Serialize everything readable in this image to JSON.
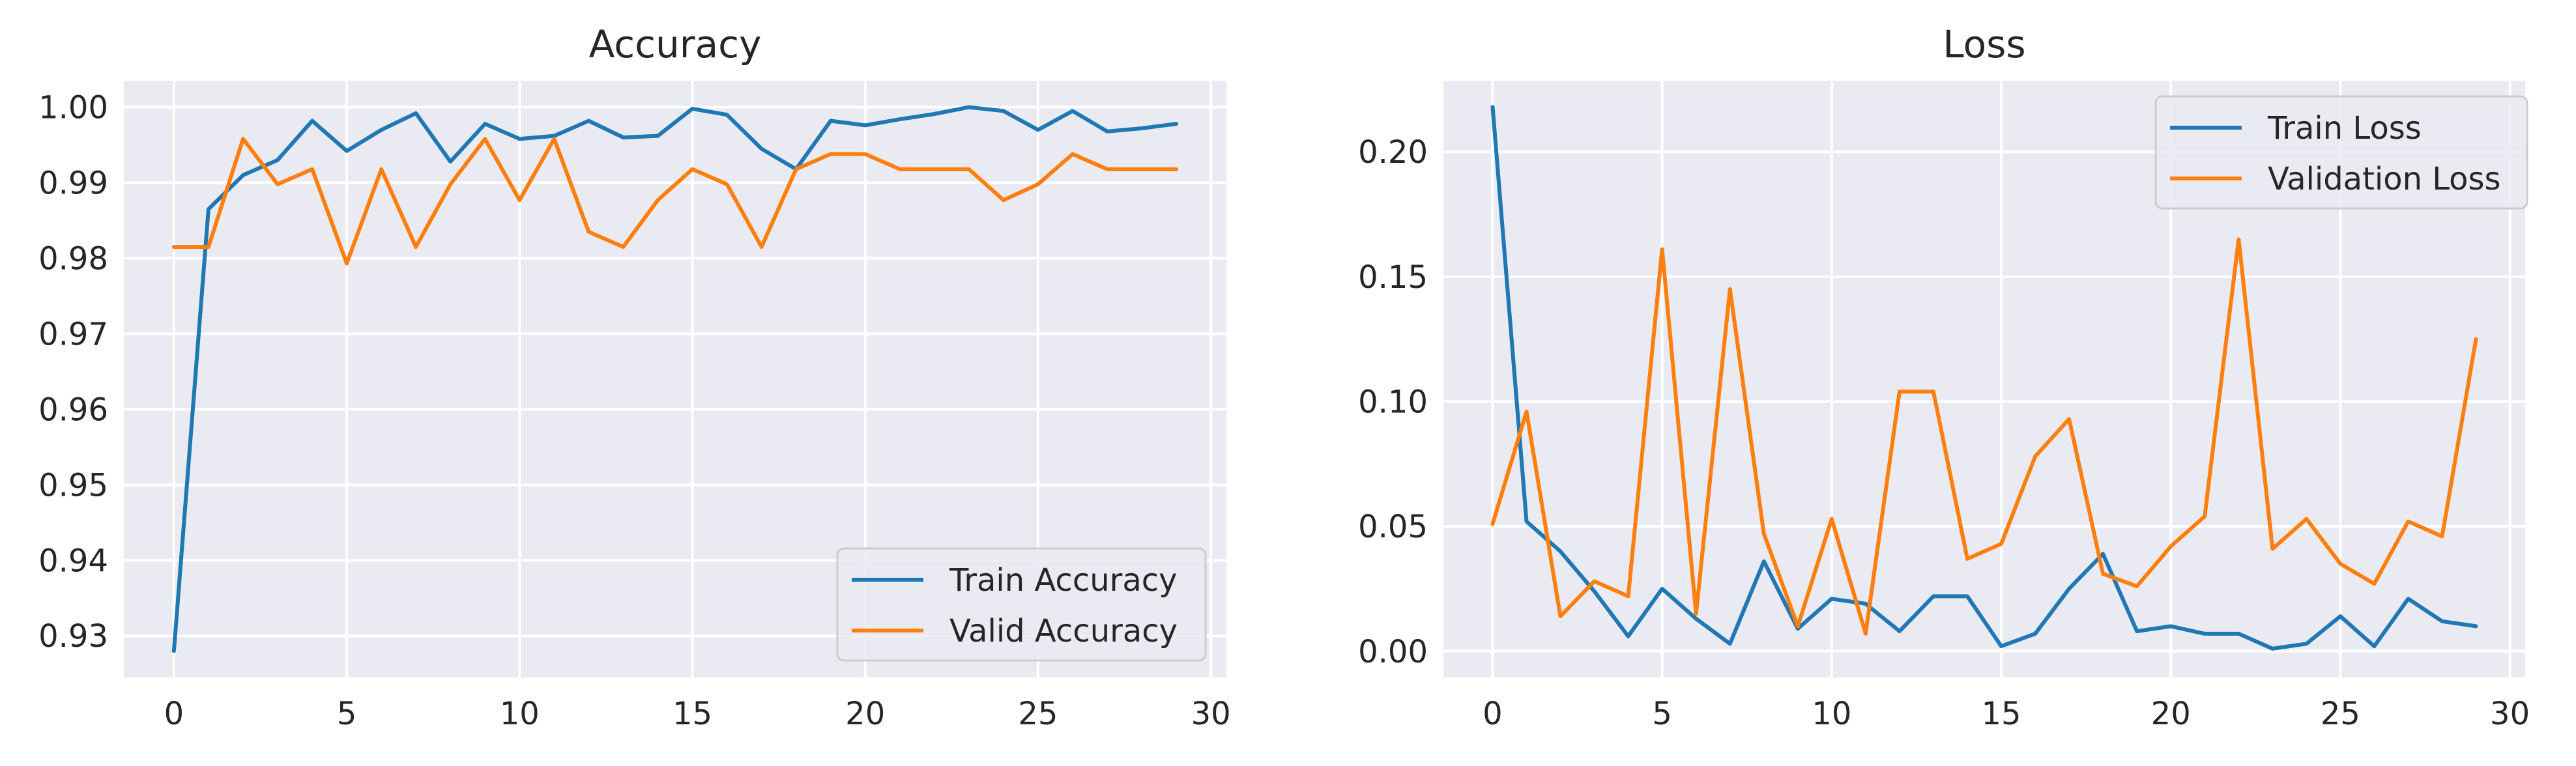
{
  "chart_data": [
    {
      "type": "line",
      "title": "Accuracy",
      "xlabel": "",
      "ylabel": "",
      "xlim": [
        -1.45,
        30.45
      ],
      "ylim": [
        0.9245,
        1.0035
      ],
      "xticks": [
        0,
        5,
        10,
        15,
        20,
        25,
        30
      ],
      "yticks": [
        0.93,
        0.94,
        0.95,
        0.96,
        0.97,
        0.98,
        0.99,
        1.0
      ],
      "ytick_labels": [
        "0.93",
        "0.94",
        "0.95",
        "0.96",
        "0.97",
        "0.98",
        "0.99",
        "1.00"
      ],
      "grid": true,
      "legend_position": "lower-right",
      "x": [
        0,
        1,
        2,
        3,
        4,
        5,
        6,
        7,
        8,
        9,
        10,
        11,
        12,
        13,
        14,
        15,
        16,
        17,
        18,
        19,
        20,
        21,
        22,
        23,
        24,
        25,
        26,
        27,
        28,
        29
      ],
      "series": [
        {
          "name": "Train Accuracy",
          "color": "#1f77b4",
          "values": [
            0.928,
            0.9865,
            0.991,
            0.993,
            0.9982,
            0.9942,
            0.997,
            0.9992,
            0.9928,
            0.9978,
            0.9958,
            0.9962,
            0.9982,
            0.996,
            0.9962,
            0.9998,
            0.999,
            0.9945,
            0.9918,
            0.9982,
            0.9976,
            0.9984,
            0.9991,
            1.0,
            0.9995,
            0.997,
            0.9995,
            0.9968,
            0.9972,
            0.9978
          ]
        },
        {
          "name": "Valid Accuracy",
          "color": "#ff7f0e",
          "values": [
            0.9815,
            0.9815,
            0.9958,
            0.9898,
            0.9918,
            0.9793,
            0.9918,
            0.9815,
            0.9898,
            0.9958,
            0.9877,
            0.9958,
            0.9835,
            0.9815,
            0.9877,
            0.9918,
            0.9898,
            0.9815,
            0.9918,
            0.9938,
            0.9938,
            0.9918,
            0.9918,
            0.9918,
            0.9877,
            0.9898,
            0.9938,
            0.9918,
            0.9918,
            0.9918
          ]
        }
      ]
    },
    {
      "type": "line",
      "title": "Loss",
      "xlabel": "",
      "ylabel": "",
      "xlim": [
        -1.45,
        30.45
      ],
      "ylim": [
        -0.0105,
        0.2285
      ],
      "xticks": [
        0,
        5,
        10,
        15,
        20,
        25,
        30
      ],
      "yticks": [
        0.0,
        0.05,
        0.1,
        0.15,
        0.2
      ],
      "ytick_labels": [
        "0.00",
        "0.05",
        "0.10",
        "0.15",
        "0.20"
      ],
      "grid": true,
      "legend_position": "upper-right",
      "x": [
        0,
        1,
        2,
        3,
        4,
        5,
        6,
        7,
        8,
        9,
        10,
        11,
        12,
        13,
        14,
        15,
        16,
        17,
        18,
        19,
        20,
        21,
        22,
        23,
        24,
        25,
        26,
        27,
        28,
        29
      ],
      "series": [
        {
          "name": "Train Loss",
          "color": "#1f77b4",
          "values": [
            0.218,
            0.052,
            0.04,
            0.024,
            0.006,
            0.025,
            0.013,
            0.003,
            0.036,
            0.009,
            0.021,
            0.019,
            0.008,
            0.022,
            0.022,
            0.002,
            0.007,
            0.025,
            0.039,
            0.008,
            0.01,
            0.007,
            0.007,
            0.001,
            0.003,
            0.014,
            0.002,
            0.021,
            0.012,
            0.01
          ]
        },
        {
          "name": "Validation Loss",
          "color": "#ff7f0e",
          "values": [
            0.051,
            0.096,
            0.014,
            0.028,
            0.022,
            0.161,
            0.015,
            0.145,
            0.047,
            0.01,
            0.053,
            0.007,
            0.104,
            0.104,
            0.037,
            0.043,
            0.078,
            0.093,
            0.031,
            0.026,
            0.042,
            0.054,
            0.165,
            0.041,
            0.053,
            0.035,
            0.027,
            0.052,
            0.046,
            0.125
          ]
        }
      ]
    }
  ]
}
